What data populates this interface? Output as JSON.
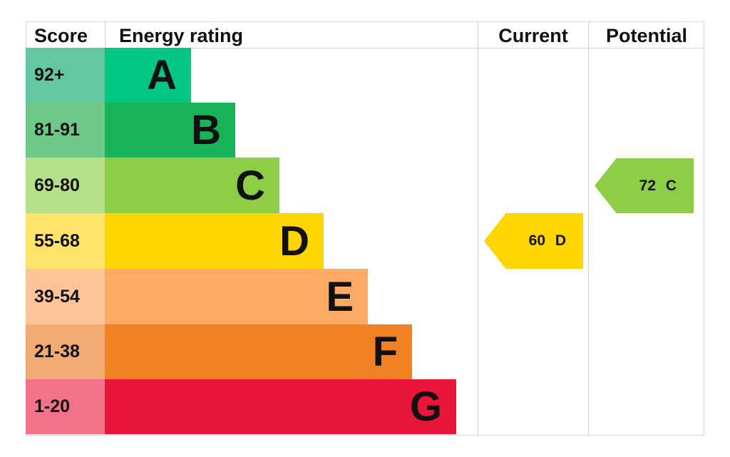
{
  "header": {
    "score": "Score",
    "energy_rating": "Energy rating",
    "current": "Current",
    "potential": "Potential"
  },
  "bands": [
    {
      "score": "92+",
      "letter": "A",
      "color": "#00c781",
      "score_color": "#64c7a1",
      "bar_end": 268
    },
    {
      "score": "81-91",
      "letter": "B",
      "color": "#19b459",
      "score_color": "#6cc98a",
      "bar_end": 330
    },
    {
      "score": "69-80",
      "letter": "C",
      "color": "#8dce46",
      "score_color": "#b6df8a",
      "bar_end": 392
    },
    {
      "score": "55-68",
      "letter": "D",
      "color": "#ffd500",
      "score_color": "#fee36a",
      "bar_end": 454
    },
    {
      "score": "39-54",
      "letter": "E",
      "color": "#fcaa65",
      "score_color": "#fdc49a",
      "bar_end": 516
    },
    {
      "score": "21-38",
      "letter": "F",
      "color": "#ef8023",
      "score_color": "#f2aa73",
      "bar_end": 578
    },
    {
      "score": "1-20",
      "letter": "G",
      "color": "#e9153b",
      "score_color": "#f27289",
      "bar_end": 640
    }
  ],
  "current": {
    "value": "60",
    "letter": "D",
    "label": "60 D",
    "color": "#ffd500"
  },
  "potential": {
    "value": "72",
    "letter": "C",
    "label": "72 C",
    "color": "#8dce46"
  },
  "chart_data": {
    "type": "bar",
    "title": "Energy rating",
    "categories": [
      "A",
      "B",
      "C",
      "D",
      "E",
      "F",
      "G"
    ],
    "score_ranges": [
      "92+",
      "81-91",
      "69-80",
      "55-68",
      "39-54",
      "21-38",
      "1-20"
    ],
    "current": {
      "score": 60,
      "band": "D"
    },
    "potential": {
      "score": 72,
      "band": "C"
    },
    "columns": [
      "Score",
      "Energy rating",
      "Current",
      "Potential"
    ]
  }
}
